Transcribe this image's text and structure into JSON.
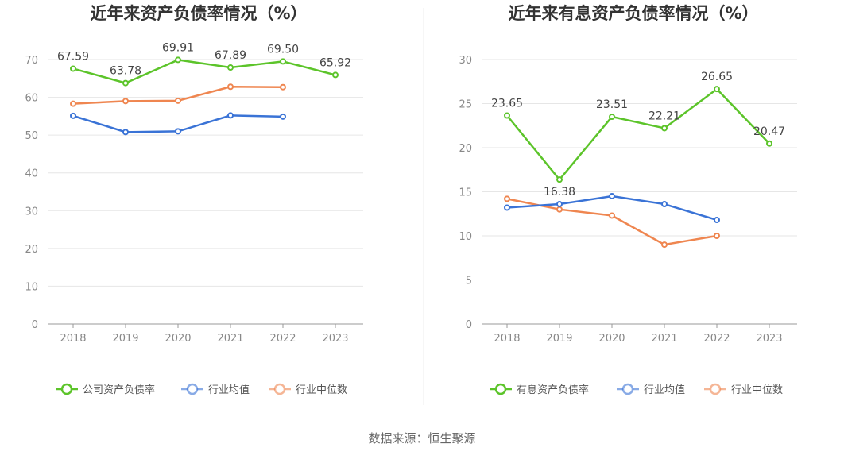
{
  "source_text": "数据来源：恒生聚源",
  "chart_data": [
    {
      "type": "line",
      "title": "近年来资产负债率情况（%）",
      "categories": [
        "2018",
        "2019",
        "2020",
        "2021",
        "2022",
        "2023"
      ],
      "ylim": [
        0,
        70
      ],
      "yticks": [
        0,
        10,
        20,
        30,
        40,
        50,
        60,
        70
      ],
      "grid": true,
      "legend_position": "bottom",
      "series": [
        {
          "name": "公司资产负债率",
          "color": "#5cc42a",
          "values": [
            67.59,
            63.78,
            69.91,
            67.89,
            69.5,
            65.92
          ],
          "labels": [
            "67.59",
            "63.78",
            "69.91",
            "67.89",
            "69.50",
            "65.92"
          ]
        },
        {
          "name": "行业均值",
          "color": "#3a73d6",
          "values": [
            55.1,
            50.8,
            51.0,
            55.2,
            54.9,
            null
          ],
          "labels": null
        },
        {
          "name": "行业中位数",
          "color": "#ef8650",
          "values": [
            58.3,
            59.0,
            59.1,
            62.8,
            62.7,
            null
          ],
          "labels": null
        }
      ]
    },
    {
      "type": "line",
      "title": "近年来有息资产负债率情况（%）",
      "categories": [
        "2018",
        "2019",
        "2020",
        "2021",
        "2022",
        "2023"
      ],
      "ylim": [
        0,
        30
      ],
      "yticks": [
        0,
        5,
        10,
        15,
        20,
        25,
        30
      ],
      "grid": true,
      "legend_position": "bottom",
      "series": [
        {
          "name": "有息资产负债率",
          "color": "#5cc42a",
          "values": [
            23.65,
            16.38,
            23.51,
            22.21,
            26.65,
            20.47
          ],
          "labels": [
            "23.65",
            "16.38",
            "23.51",
            "22.21",
            "26.65",
            "20.47"
          ]
        },
        {
          "name": "行业均值",
          "color": "#3a73d6",
          "values": [
            13.2,
            13.6,
            14.5,
            13.6,
            11.8,
            null
          ],
          "labels": null
        },
        {
          "name": "行业中位数",
          "color": "#ef8650",
          "values": [
            14.2,
            13.0,
            12.3,
            9.0,
            10.0,
            null
          ],
          "labels": null
        }
      ]
    }
  ]
}
